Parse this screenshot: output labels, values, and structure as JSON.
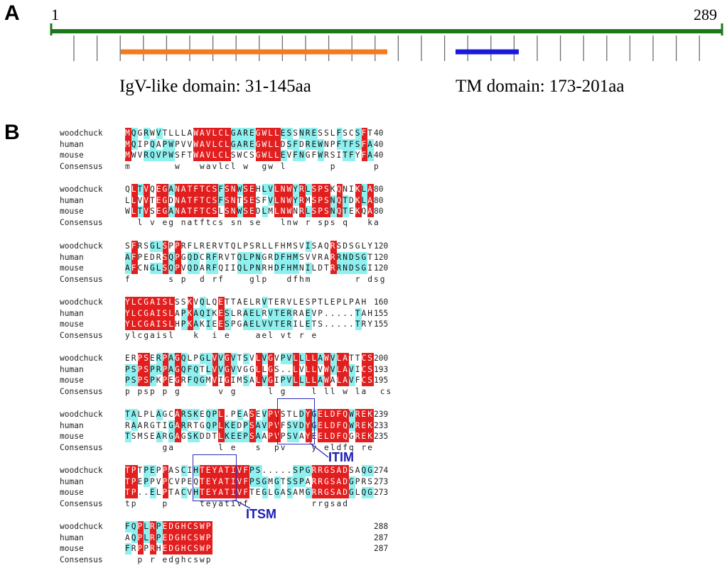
{
  "panelA": {
    "label": "A",
    "start_label": "1",
    "end_label": "289",
    "igv_caption": "IgV-like domain: 31-145aa",
    "tm_caption": "TM domain: 173-201aa",
    "colors": {
      "backbone": "#1a7a1a",
      "igv": "#f57a1e",
      "tm": "#1a1adc",
      "ticks": "#6e6e6e"
    }
  },
  "panelB": {
    "label": "B",
    "colors": {
      "identical": "#e21e1e",
      "similar": "#8ff0f0"
    },
    "blocks": [
      {
        "rows": [
          {
            "name": "woodchuck",
            "seq": "MQGRWVTLLLAWAVLCLGAREGWLLESSNRESSLFSCSFT",
            "end": "40"
          },
          {
            "name": "human",
            "seq": "MQIPQAPWPVVWAVLCLGAREGWLLDSFDREWNPFTFSFA",
            "end": "40"
          },
          {
            "name": "mouse",
            "seq": "MWVRQVPWSFTWAVLCLSWCSGWLLEVFNGFWRSITFYFA",
            "end": "40"
          },
          {
            "name": "Consensus",
            "seq": "m       w   wavlcl w  gw l       p      p",
            "end": ""
          }
        ]
      },
      {
        "rows": [
          {
            "name": "woodchuck",
            "seq": "QLTVQEGANATFTCSFSNWSEHLVLNWYRLSPSKQNIKLA",
            "end": "80"
          },
          {
            "name": "human",
            "seq": "LLVVTEGDNATFTCSFSNTSESFVLNWYRMSPSNQTDKLA",
            "end": "80"
          },
          {
            "name": "mouse",
            "seq": "WLTVSEGANATFTCSLSNWSEDLMLNWNRLSPSNQTEKQA",
            "end": "80"
          },
          {
            "name": "Consensus",
            "seq": "  l v eg natftcs sn se   lnw r sps q   ka",
            "end": ""
          }
        ]
      },
      {
        "rows": [
          {
            "name": "woodchuck",
            "seq": "SFRSGLSPPRFLRERVTQLPSRLLFHMSVISAQRSDSGLY",
            "end": "120"
          },
          {
            "name": "human",
            "seq": "AFPEDRSQPGQDCRFRVTQLPNGRDFHMSVVRARRNDSGT",
            "end": "120"
          },
          {
            "name": "mouse",
            "seq": "AFCNGLSQPVQDARFQIIQLPNRHDFHMNILDTRRNDSGI",
            "end": "120"
          },
          {
            "name": "Consensus",
            "seq": "f      s p  d rf    glp   dfhm       r dsg",
            "end": ""
          }
        ]
      },
      {
        "rows": [
          {
            "name": "woodchuck",
            "seq": "YLCGAISLSSKVQLQETTAELRVTERVLESPTLEPLPAH",
            "end": "160"
          },
          {
            "name": "human",
            "seq": "YLCGAISLAPKAQIKESLRAELRVTERRAEVP.....TAH",
            "end": "155"
          },
          {
            "name": "mouse",
            "seq": "YLCGAISLHPKAKIEESPGAELVVTERILETS.....TRY",
            "end": "155"
          },
          {
            "name": "Consensus",
            "seq": "ylcgaisl   k  i e    ael vt r e",
            "end": ""
          }
        ]
      },
      {
        "rows": [
          {
            "name": "woodchuck",
            "seq": "ERPSERPAGQLPGLVVGVTSVLVGVPVLLLLAWVLATTCS",
            "end": "200"
          },
          {
            "name": "human",
            "seq": "PSPSPRPAGQFQTLVVGVVGGLLGS..LVLLVWVLAVICS",
            "end": "193"
          },
          {
            "name": "mouse",
            "seq": "PSPSPKPEGRFQGMVIGIMSALVGIPVLLLLAWALAVFCS",
            "end": "195"
          },
          {
            "name": "Consensus",
            "seq": "p psp p g      v g     l g    l ll w la  cs",
            "end": ""
          }
        ]
      },
      {
        "rows": [
          {
            "name": "woodchuck",
            "seq": "TALPLAGCARSKEQPL.PEASEVPVSTLDYGELDFQWREK",
            "end": "239"
          },
          {
            "name": "human",
            "seq": "RAARGTIGARRTGQPLKEDPSAVPVFSVDYGELDFQWREK",
            "end": "233"
          },
          {
            "name": "mouse",
            "seq": "TSMSEARGAGSKDDTLKEEPSAAPVPSVAYEELDFQGREK",
            "end": "235"
          },
          {
            "name": "Consensus",
            "seq": "      ga       l e   s  pv    y eldfq re",
            "end": ""
          }
        ]
      },
      {
        "rows": [
          {
            "name": "woodchuck",
            "seq": "TPTPEPPASCIHTEYATIVFPS.....SPGRRGSADSAQG",
            "end": "274"
          },
          {
            "name": "human",
            "seq": "TPEPPVPCVPEQTEYATIVFPSGMGTSSPARRGSADGPRS",
            "end": "273"
          },
          {
            "name": "mouse",
            "seq": "TP..ELPTACVHTEYATIVFTEGLGASAMGRRGSADGLQG",
            "end": "273"
          },
          {
            "name": "Consensus",
            "seq": "tp    p     teyativf          rrgsad",
            "end": ""
          }
        ]
      },
      {
        "rows": [
          {
            "name": "woodchuck",
            "seq": "FQPLRPEDGHCSWP",
            "end": "288"
          },
          {
            "name": "human",
            "seq": "AQPLRPEDGHCSWP",
            "end": "287"
          },
          {
            "name": "mouse",
            "seq": "FRPPRHEDGHCSWP",
            "end": "287"
          },
          {
            "name": "Consensus",
            "seq": "  p r edghcswp",
            "end": ""
          }
        ]
      }
    ],
    "motifs": {
      "itim": "ITIM",
      "itsm": "ITSM"
    }
  }
}
